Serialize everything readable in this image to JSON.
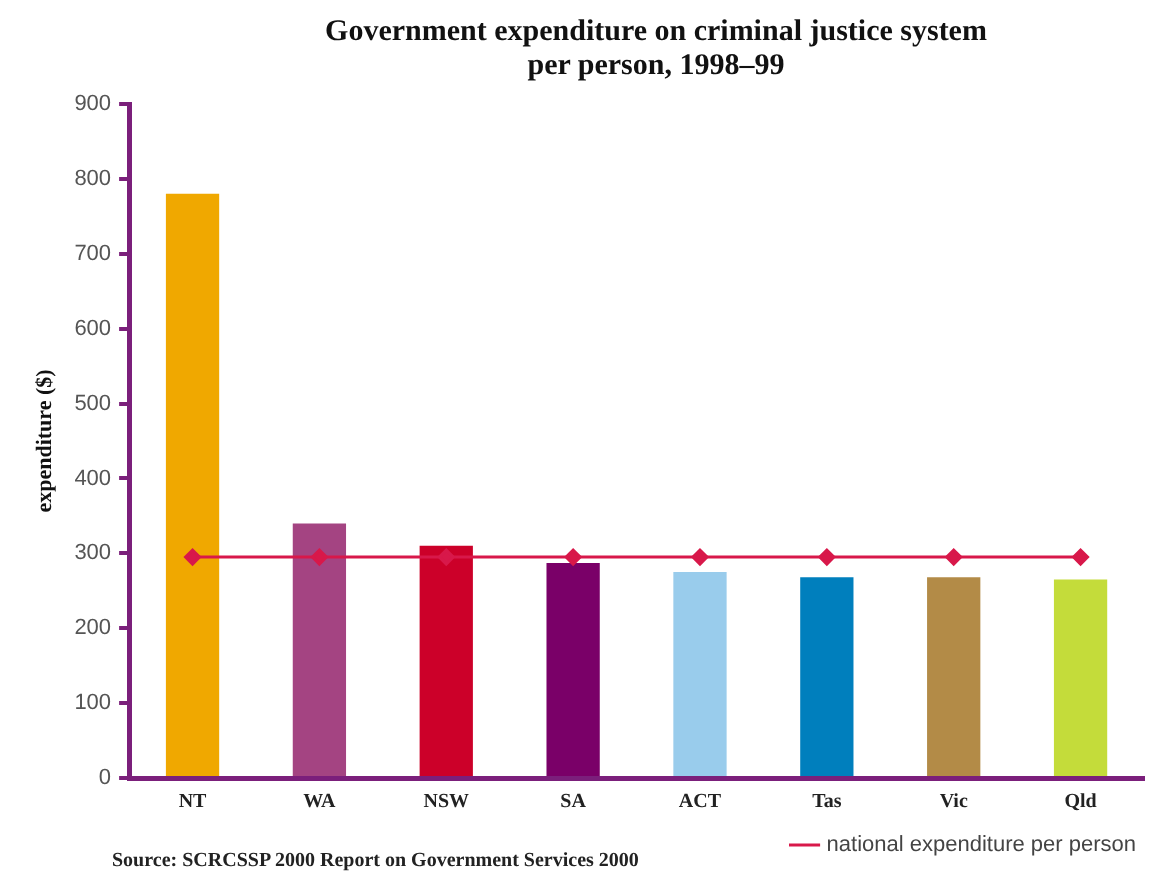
{
  "chart_data": {
    "type": "bar",
    "title": "Government expenditure on criminal justice system per person, 1998–99",
    "ylabel": "expenditure ($)",
    "categories": [
      "NT",
      "WA",
      "NSW",
      "SA",
      "ACT",
      "Tas",
      "Vic",
      "Qld"
    ],
    "series": [
      {
        "colors": [
          "#f0a800",
          "#a44482",
          "#cc0029",
          "#7a0068",
          "#99ccec",
          "#007fbd",
          "#b38b47",
          "#c4dc3a"
        ],
        "values": [
          780,
          340,
          310,
          287,
          275,
          268,
          268,
          265
        ]
      },
      {
        "type": "line",
        "name": "national expenditure per person",
        "color": "#d8184a",
        "values": [
          295,
          295,
          295,
          295,
          295,
          295,
          295,
          295
        ],
        "marker": "diamond"
      }
    ],
    "ylim": [
      0,
      900
    ],
    "yticks": [
      0,
      100,
      200,
      300,
      400,
      500,
      600,
      700,
      800,
      900
    ],
    "legend": "bottom right",
    "annotations": [
      "Source: SCRCSSP 2000 Report on Government Services 2000"
    ]
  }
}
